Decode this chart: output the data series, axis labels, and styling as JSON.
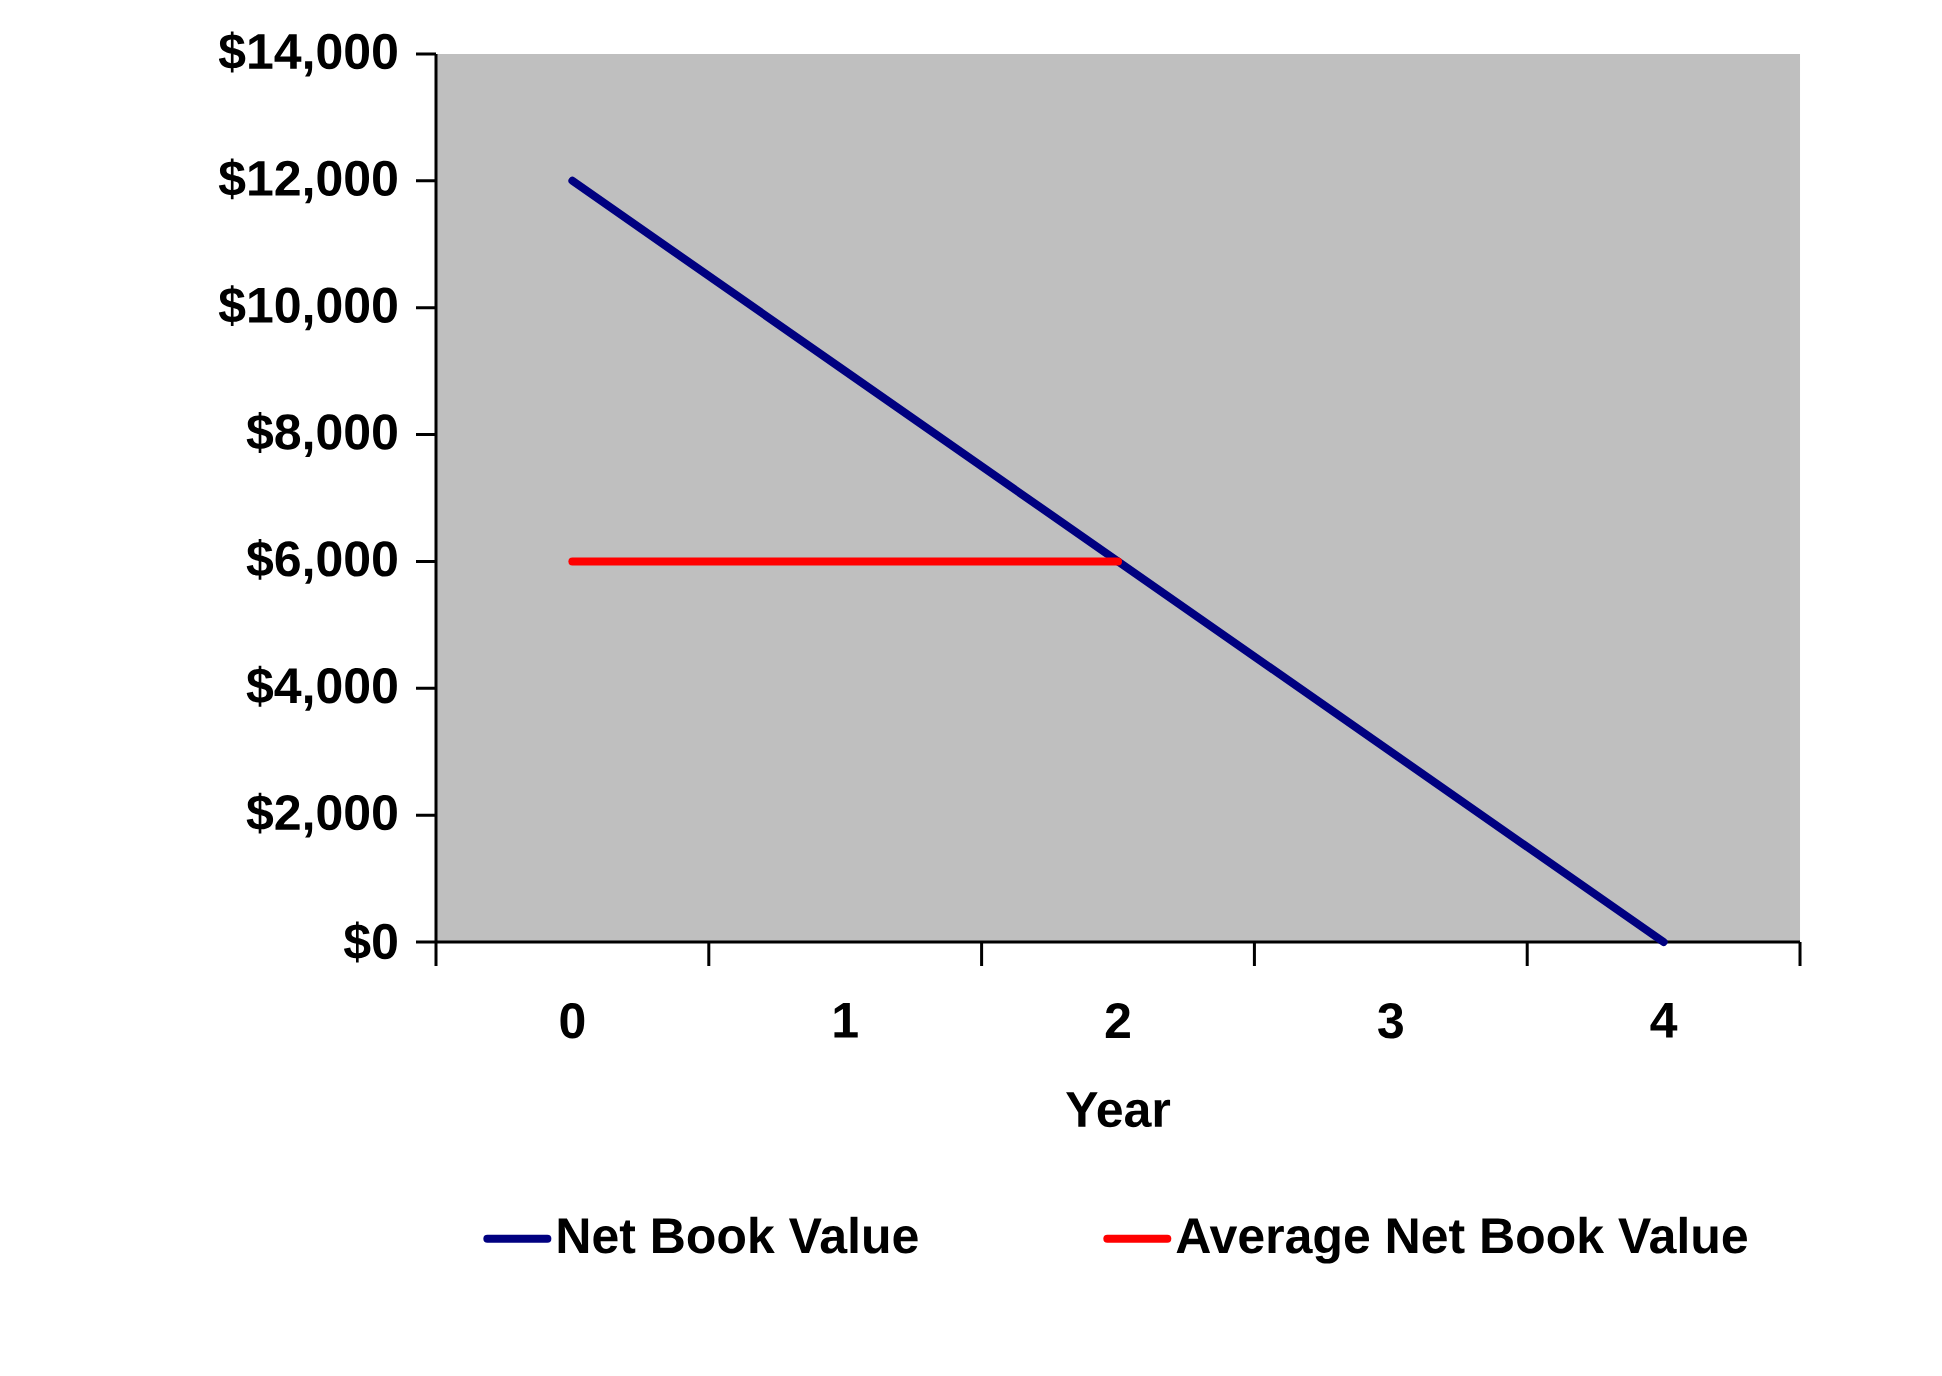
{
  "chart_data": {
    "type": "line",
    "xlabel": "Year",
    "categories": [
      "0",
      "1",
      "2",
      "3",
      "4"
    ],
    "series": [
      {
        "name": "Net Book Value",
        "color": "#000080",
        "values": [
          12000,
          9000,
          6000,
          3000,
          0
        ]
      },
      {
        "name": "Average Net Book Value",
        "color": "#ff0000",
        "values": [
          6000,
          6000,
          6000,
          null,
          null
        ]
      }
    ],
    "ylim": [
      0,
      14000
    ],
    "yticks": [
      {
        "value": 0,
        "label": "$0"
      },
      {
        "value": 2000,
        "label": "$2,000"
      },
      {
        "value": 4000,
        "label": "$4,000"
      },
      {
        "value": 6000,
        "label": "$6,000"
      },
      {
        "value": 8000,
        "label": "$8,000"
      },
      {
        "value": 10000,
        "label": "$10,000"
      },
      {
        "value": 12000,
        "label": "$12,000"
      },
      {
        "value": 14000,
        "label": "$14,000"
      }
    ],
    "legend": "bottom"
  }
}
